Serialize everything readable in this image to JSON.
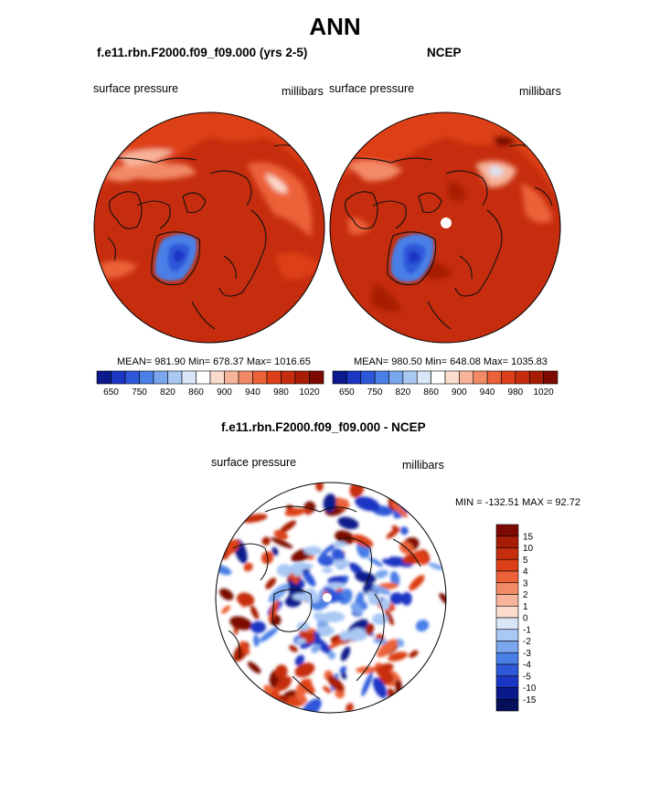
{
  "figure": {
    "title": "ANN"
  },
  "chart_data": [
    {
      "type": "heatmap",
      "projection": "north polar stereographic",
      "title": "f.e11.rbn.F2000.f09_f09.000 (yrs 2-5)",
      "left_label": "surface pressure",
      "right_label": "millibars",
      "stats": {
        "mean": "981.90",
        "min": "678.37",
        "max": "1016.65",
        "text": "MEAN= 981.90  Min= 678.37  Max= 1016.65"
      },
      "colorbar": {
        "orientation": "horizontal",
        "levels": [
          650,
          700,
          750,
          800,
          820,
          840,
          860,
          880,
          900,
          920,
          940,
          960,
          980,
          1000,
          1020
        ],
        "tick_labels": [
          "650",
          "750",
          "820",
          "860",
          "900",
          "940",
          "980",
          "1020"
        ],
        "colors": [
          "#0a1a8c",
          "#1c36c4",
          "#2e58d9",
          "#4a7fe6",
          "#7aa6ee",
          "#a9c8f4",
          "#d8e6f8",
          "#ffffff",
          "#fbdccd",
          "#f7b49a",
          "#f38a66",
          "#ec6238",
          "#dd3f18",
          "#c62d0e",
          "#a81d06",
          "#7d0a02"
        ]
      },
      "grid": false
    },
    {
      "type": "heatmap",
      "projection": "north polar stereographic",
      "title": "NCEP",
      "left_label": "surface pressure",
      "right_label": "millibars",
      "stats": {
        "mean": "980.50",
        "min": "648.08",
        "max": "1035.83",
        "text": "MEAN= 980.50  Min= 648.08  Max= 1035.83"
      },
      "colorbar": {
        "orientation": "horizontal",
        "levels": [
          650,
          700,
          750,
          800,
          820,
          840,
          860,
          880,
          900,
          920,
          940,
          960,
          980,
          1000,
          1020
        ],
        "tick_labels": [
          "650",
          "750",
          "820",
          "860",
          "900",
          "940",
          "980",
          "1020"
        ],
        "colors": [
          "#0a1a8c",
          "#1c36c4",
          "#2e58d9",
          "#4a7fe6",
          "#7aa6ee",
          "#a9c8f4",
          "#d8e6f8",
          "#ffffff",
          "#fbdccd",
          "#f7b49a",
          "#f38a66",
          "#ec6238",
          "#dd3f18",
          "#c62d0e",
          "#a81d06",
          "#7d0a02"
        ]
      },
      "grid": false
    },
    {
      "type": "heatmap",
      "projection": "north polar stereographic",
      "title": "f.e11.rbn.F2000.f09_f09.000 - NCEP",
      "left_label": "surface pressure",
      "right_label": "millibars",
      "stats": {
        "min": "-132.51",
        "max": "92.72",
        "text": "MIN = -132.51 MAX =  92.72"
      },
      "colorbar": {
        "orientation": "vertical",
        "tick_labels": [
          "15",
          "10",
          "5",
          "4",
          "3",
          "2",
          "1",
          "0",
          "-1",
          "-2",
          "-3",
          "-4",
          "-5",
          "-10",
          "-15"
        ],
        "colors": [
          "#7d0a02",
          "#a81d06",
          "#c62d0e",
          "#dd3f18",
          "#ec6238",
          "#f38a66",
          "#f7b49a",
          "#fbdccd",
          "#d8e6f8",
          "#a9c8f4",
          "#7aa6ee",
          "#4a7fe6",
          "#2e58d9",
          "#1c36c4",
          "#0a1a8c",
          "#050f5c"
        ]
      },
      "grid": false
    }
  ]
}
